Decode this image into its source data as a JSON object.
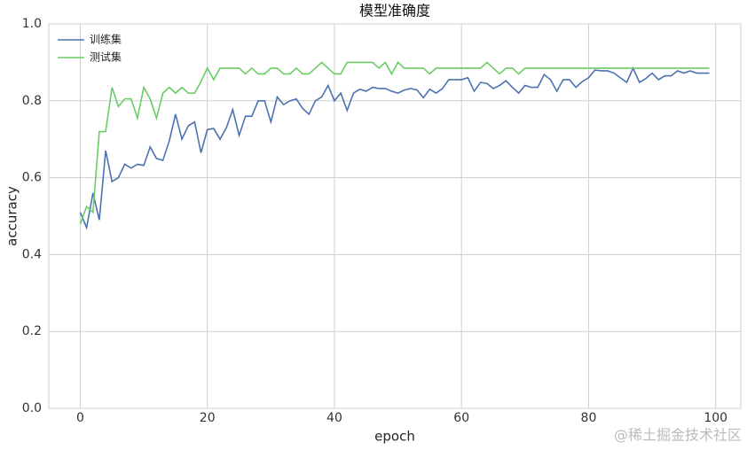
{
  "chart_data": {
    "type": "line",
    "title": "模型准确度",
    "x_label": "epoch",
    "y_label": "accuracy",
    "x": [
      0,
      1,
      2,
      3,
      4,
      5,
      6,
      7,
      8,
      9,
      10,
      11,
      12,
      13,
      14,
      15,
      16,
      17,
      18,
      19,
      20,
      21,
      22,
      23,
      24,
      25,
      26,
      27,
      28,
      29,
      30,
      31,
      32,
      33,
      34,
      35,
      36,
      37,
      38,
      39,
      40,
      41,
      42,
      43,
      44,
      45,
      46,
      47,
      48,
      49,
      50,
      51,
      52,
      53,
      54,
      55,
      56,
      57,
      58,
      59,
      60,
      61,
      62,
      63,
      64,
      65,
      66,
      67,
      68,
      69,
      70,
      71,
      72,
      73,
      74,
      75,
      76,
      77,
      78,
      79,
      80,
      81,
      82,
      83,
      84,
      85,
      86,
      87,
      88,
      89,
      90,
      91,
      92,
      93,
      94,
      95,
      96,
      97,
      98,
      99
    ],
    "series": [
      {
        "name": "训练集",
        "color": "#4c72b0",
        "values": [
          0.51,
          0.47,
          0.56,
          0.49,
          0.67,
          0.59,
          0.6,
          0.635,
          0.625,
          0.635,
          0.632,
          0.68,
          0.65,
          0.645,
          0.695,
          0.765,
          0.7,
          0.735,
          0.745,
          0.665,
          0.725,
          0.728,
          0.7,
          0.73,
          0.777,
          0.71,
          0.76,
          0.76,
          0.8,
          0.8,
          0.745,
          0.81,
          0.79,
          0.8,
          0.805,
          0.78,
          0.765,
          0.8,
          0.81,
          0.84,
          0.8,
          0.82,
          0.775,
          0.82,
          0.83,
          0.825,
          0.835,
          0.832,
          0.832,
          0.825,
          0.82,
          0.828,
          0.832,
          0.828,
          0.808,
          0.83,
          0.82,
          0.832,
          0.855,
          0.855,
          0.855,
          0.86,
          0.825,
          0.848,
          0.845,
          0.832,
          0.84,
          0.852,
          0.835,
          0.82,
          0.84,
          0.835,
          0.835,
          0.868,
          0.855,
          0.825,
          0.855,
          0.855,
          0.835,
          0.85,
          0.86,
          0.88,
          0.878,
          0.878,
          0.872,
          0.86,
          0.848,
          0.885,
          0.848,
          0.858,
          0.872,
          0.855,
          0.865,
          0.865,
          0.878,
          0.872,
          0.878,
          0.872,
          0.872,
          0.872
        ]
      },
      {
        "name": "测试集",
        "color": "#6acc64",
        "values": [
          0.48,
          0.525,
          0.51,
          0.72,
          0.72,
          0.835,
          0.785,
          0.805,
          0.805,
          0.755,
          0.835,
          0.805,
          0.755,
          0.82,
          0.835,
          0.82,
          0.835,
          0.82,
          0.82,
          0.85,
          0.885,
          0.855,
          0.885,
          0.885,
          0.885,
          0.885,
          0.87,
          0.885,
          0.87,
          0.87,
          0.885,
          0.885,
          0.87,
          0.87,
          0.885,
          0.87,
          0.87,
          0.885,
          0.9,
          0.885,
          0.87,
          0.87,
          0.9,
          0.9,
          0.9,
          0.9,
          0.9,
          0.885,
          0.9,
          0.87,
          0.9,
          0.885,
          0.885,
          0.885,
          0.885,
          0.87,
          0.885,
          0.885,
          0.885,
          0.885,
          0.885,
          0.885,
          0.885,
          0.885,
          0.9,
          0.885,
          0.87,
          0.885,
          0.885,
          0.87,
          0.885,
          0.885,
          0.885,
          0.885,
          0.885,
          0.885,
          0.885,
          0.885,
          0.885,
          0.885,
          0.885,
          0.885,
          0.885,
          0.885,
          0.885,
          0.885,
          0.885,
          0.885,
          0.885,
          0.885,
          0.885,
          0.885,
          0.885,
          0.885,
          0.885,
          0.885,
          0.885,
          0.885,
          0.885,
          0.885
        ]
      }
    ],
    "xlim": [
      -4.95,
      103.95
    ],
    "ylim": [
      0,
      1
    ],
    "xticks": [
      0,
      20,
      40,
      60,
      80,
      100
    ],
    "yticks": [
      {
        "value": 0,
        "label": "0.0"
      },
      {
        "value": 0.2,
        "label": "0.2"
      },
      {
        "value": 0.4,
        "label": "0.4"
      },
      {
        "value": 0.6,
        "label": "0.6"
      },
      {
        "value": 0.8,
        "label": "0.8"
      },
      {
        "value": 1,
        "label": "1.0"
      }
    ],
    "grid": true,
    "legend": "upper left",
    "watermark": "@稀土掘金技术社区"
  }
}
